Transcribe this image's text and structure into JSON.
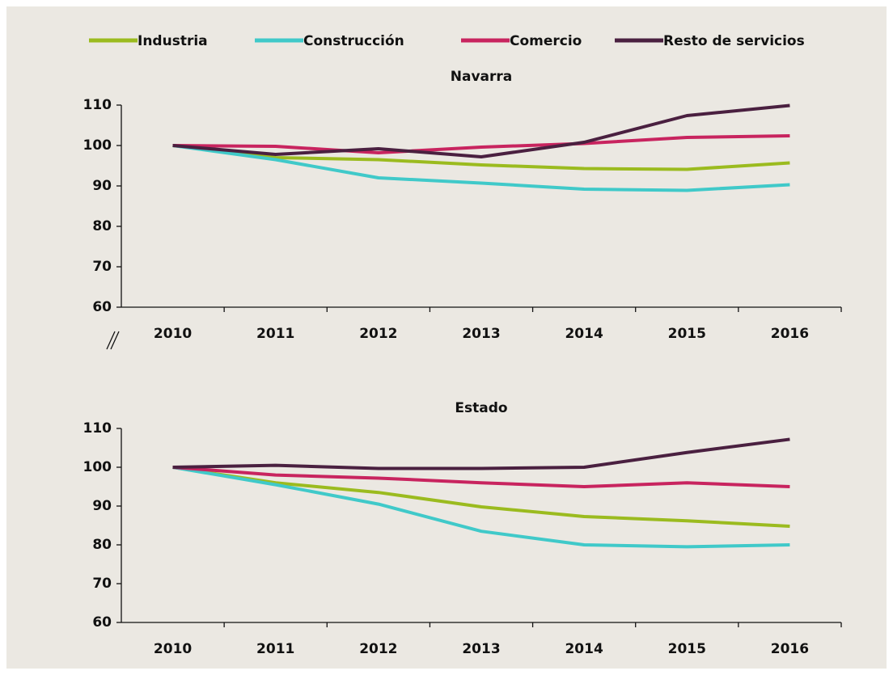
{
  "chart_data": [
    {
      "type": "line",
      "title": "Navarra",
      "categories": [
        "2010",
        "2011",
        "2012",
        "2013",
        "2014",
        "2015",
        "2016"
      ],
      "series": [
        {
          "name": "Industria",
          "color": "#9bbb1f",
          "values": [
            100,
            97,
            96.5,
            95.2,
            94.3,
            94.1,
            95.7
          ]
        },
        {
          "name": "Construcción",
          "color": "#40c9c9",
          "values": [
            100,
            96.5,
            92,
            90.7,
            89.2,
            88.9,
            90.3
          ]
        },
        {
          "name": "Comercio",
          "color": "#c8245f",
          "values": [
            100,
            99.8,
            98.2,
            99.6,
            100.5,
            102,
            102.4
          ]
        },
        {
          "name": "Resto de servicios",
          "color": "#4a2040",
          "values": [
            100,
            97.8,
            99.2,
            97.2,
            100.8,
            107.4,
            109.9
          ]
        }
      ],
      "ylim": [
        60,
        110
      ],
      "yticks": [
        60,
        70,
        80,
        90,
        100,
        110
      ]
    },
    {
      "type": "line",
      "title": "Estado",
      "categories": [
        "2010",
        "2011",
        "2012",
        "2013",
        "2014",
        "2015",
        "2016"
      ],
      "series": [
        {
          "values": [
            100,
            96,
            93.5,
            89.8,
            87.3,
            86.2,
            84.8
          ]
        },
        {
          "values": [
            100,
            95.5,
            90.5,
            83.5,
            80,
            79.5,
            80
          ]
        },
        {
          "values": [
            100,
            98,
            97.2,
            96,
            95,
            96,
            95
          ]
        },
        {
          "values": [
            100,
            100.5,
            99.7,
            99.7,
            100,
            103.8,
            107.2
          ]
        }
      ],
      "ylim": [
        60,
        110
      ],
      "yticks": [
        60,
        70,
        80,
        90,
        100,
        110
      ]
    }
  ]
}
